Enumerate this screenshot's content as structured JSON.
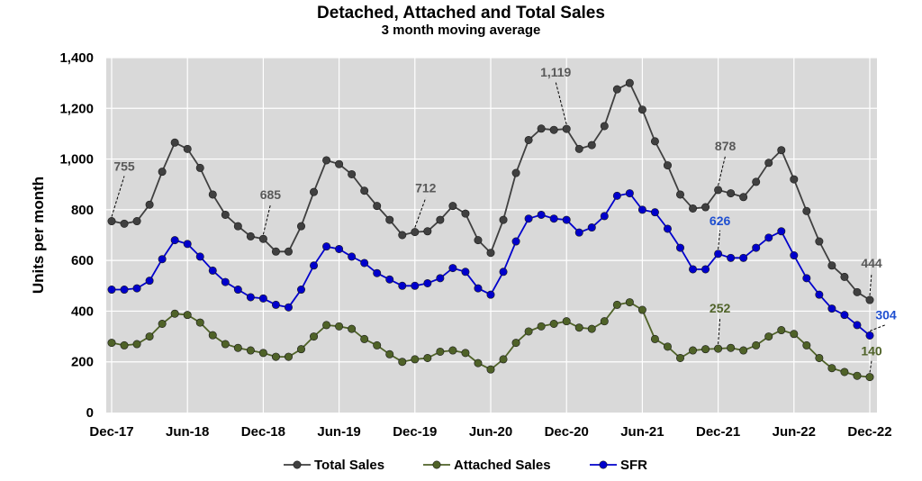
{
  "chart_data": {
    "type": "line",
    "title": "Detached, Attached and Total Sales",
    "subtitle": "3 month moving average",
    "ylabel": "Units per month",
    "xlabel": "",
    "ylim": [
      0,
      1400
    ],
    "yticks": [
      "0",
      "200",
      "400",
      "600",
      "800",
      "1,000",
      "1,200",
      "1,400"
    ],
    "ytick_values": [
      0,
      200,
      400,
      600,
      800,
      1000,
      1200,
      1400
    ],
    "xtick_labels": [
      "Dec-17",
      "Jun-18",
      "Dec-18",
      "Jun-19",
      "Dec-19",
      "Jun-20",
      "Dec-20",
      "Jun-21",
      "Dec-21",
      "Jun-22",
      "Dec-22"
    ],
    "x": [
      "2017-12",
      "2018-01",
      "2018-02",
      "2018-03",
      "2018-04",
      "2018-05",
      "2018-06",
      "2018-07",
      "2018-08",
      "2018-09",
      "2018-10",
      "2018-11",
      "2018-12",
      "2019-01",
      "2019-02",
      "2019-03",
      "2019-04",
      "2019-05",
      "2019-06",
      "2019-07",
      "2019-08",
      "2019-09",
      "2019-10",
      "2019-11",
      "2019-12",
      "2020-01",
      "2020-02",
      "2020-03",
      "2020-04",
      "2020-05",
      "2020-06",
      "2020-07",
      "2020-08",
      "2020-09",
      "2020-10",
      "2020-11",
      "2020-12",
      "2021-01",
      "2021-02",
      "2021-03",
      "2021-04",
      "2021-05",
      "2021-06",
      "2021-07",
      "2021-08",
      "2021-09",
      "2021-10",
      "2021-11",
      "2021-12",
      "2022-01",
      "2022-02",
      "2022-03",
      "2022-04",
      "2022-05",
      "2022-06",
      "2022-07",
      "2022-08",
      "2022-09",
      "2022-10",
      "2022-11",
      "2022-12"
    ],
    "grid": true,
    "legend_position": "bottom",
    "series": [
      {
        "name": "Total Sales",
        "color": "#404040",
        "values": [
          755,
          745,
          755,
          820,
          950,
          1065,
          1040,
          965,
          860,
          780,
          735,
          695,
          685,
          635,
          635,
          735,
          870,
          995,
          980,
          940,
          875,
          815,
          760,
          700,
          712,
          715,
          760,
          815,
          785,
          680,
          630,
          760,
          945,
          1075,
          1120,
          1115,
          1119,
          1040,
          1055,
          1130,
          1275,
          1300,
          1195,
          1070,
          975,
          860,
          805,
          810,
          878,
          865,
          850,
          910,
          985,
          1035,
          920,
          795,
          675,
          580,
          535,
          475,
          444
        ]
      },
      {
        "name": "Attached Sales",
        "color": "#4F6228",
        "values": [
          275,
          265,
          270,
          300,
          350,
          390,
          385,
          355,
          305,
          270,
          255,
          245,
          235,
          220,
          220,
          250,
          300,
          345,
          340,
          330,
          290,
          265,
          230,
          200,
          210,
          215,
          240,
          245,
          235,
          195,
          170,
          210,
          275,
          320,
          340,
          350,
          360,
          335,
          330,
          360,
          425,
          435,
          405,
          290,
          260,
          215,
          245,
          250,
          252,
          255,
          245,
          265,
          300,
          325,
          310,
          265,
          215,
          175,
          160,
          145,
          140
        ]
      },
      {
        "name": "SFR",
        "color": "#0000CC",
        "values": [
          485,
          485,
          490,
          520,
          605,
          680,
          665,
          615,
          560,
          515,
          485,
          455,
          450,
          425,
          415,
          485,
          580,
          655,
          645,
          615,
          590,
          550,
          525,
          500,
          500,
          510,
          530,
          570,
          555,
          490,
          465,
          555,
          675,
          765,
          780,
          765,
          760,
          710,
          730,
          775,
          855,
          865,
          800,
          790,
          725,
          650,
          565,
          565,
          626,
          610,
          610,
          650,
          690,
          715,
          620,
          530,
          465,
          410,
          385,
          345,
          304
        ]
      }
    ],
    "annotations": [
      {
        "series": "Total Sales",
        "index": 0,
        "text": "755"
      },
      {
        "series": "Total Sales",
        "index": 12,
        "text": "685"
      },
      {
        "series": "Total Sales",
        "index": 24,
        "text": "712"
      },
      {
        "series": "Total Sales",
        "index": 36,
        "text": "1,119"
      },
      {
        "series": "Total Sales",
        "index": 48,
        "text": "878"
      },
      {
        "series": "Total Sales",
        "index": 60,
        "text": "444"
      },
      {
        "series": "SFR",
        "index": 48,
        "text": "626"
      },
      {
        "series": "SFR",
        "index": 60,
        "text": "304"
      },
      {
        "series": "Attached Sales",
        "index": 48,
        "text": "252"
      },
      {
        "series": "Attached Sales",
        "index": 60,
        "text": "140"
      }
    ]
  }
}
